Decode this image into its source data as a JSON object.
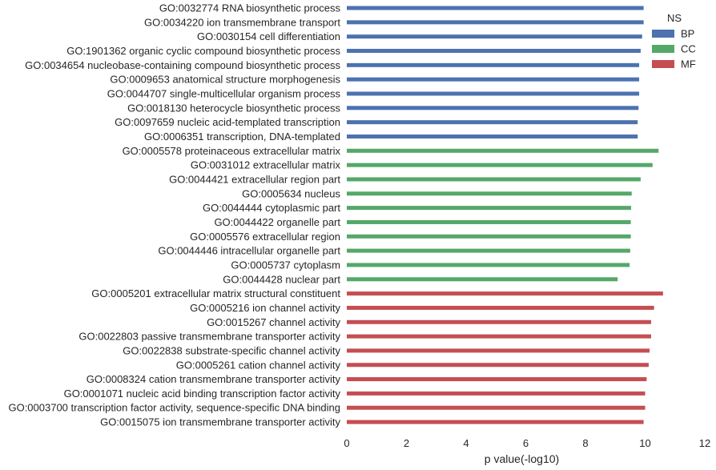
{
  "chart_data": {
    "type": "bar",
    "orientation": "horizontal",
    "xlabel": "p value(-log10)",
    "ylabel": "",
    "xlim": [
      0,
      12
    ],
    "xticks": [
      0,
      2,
      4,
      6,
      8,
      10,
      12
    ],
    "grid": false,
    "legend": {
      "title": "NS",
      "placement": "top-right",
      "entries": [
        {
          "name": "BP",
          "color": "#4c72b0"
        },
        {
          "name": "CC",
          "color": "#55a868"
        },
        {
          "name": "MF",
          "color": "#c44e52"
        }
      ]
    },
    "bars": [
      {
        "label": "GO:0032774 RNA biosynthetic process",
        "value": 9.95,
        "ns": "BP"
      },
      {
        "label": "GO:0034220 ion transmembrane transport",
        "value": 9.95,
        "ns": "BP"
      },
      {
        "label": "GO:0030154 cell differentiation",
        "value": 9.9,
        "ns": "BP"
      },
      {
        "label": "GO:1901362 organic cyclic compound biosynthetic process",
        "value": 9.85,
        "ns": "BP"
      },
      {
        "label": "GO:0034654 nucleobase-containing compound biosynthetic process",
        "value": 9.8,
        "ns": "BP"
      },
      {
        "label": "GO:0009653 anatomical structure morphogenesis",
        "value": 9.8,
        "ns": "BP"
      },
      {
        "label": "GO:0044707 single-multicellular organism process",
        "value": 9.8,
        "ns": "BP"
      },
      {
        "label": "GO:0018130 heterocycle biosynthetic process",
        "value": 9.78,
        "ns": "BP"
      },
      {
        "label": "GO:0097659 nucleic acid-templated transcription",
        "value": 9.75,
        "ns": "BP"
      },
      {
        "label": "GO:0006351 transcription, DNA-templated",
        "value": 9.75,
        "ns": "BP"
      },
      {
        "label": "GO:0005578 proteinaceous extracellular matrix",
        "value": 10.45,
        "ns": "CC"
      },
      {
        "label": "GO:0031012 extracellular matrix",
        "value": 10.25,
        "ns": "CC"
      },
      {
        "label": "GO:0044421 extracellular region part",
        "value": 9.85,
        "ns": "CC"
      },
      {
        "label": "GO:0005634 nucleus",
        "value": 9.55,
        "ns": "CC"
      },
      {
        "label": "GO:0044444 cytoplasmic part",
        "value": 9.53,
        "ns": "CC"
      },
      {
        "label": "GO:0044422 organelle part",
        "value": 9.52,
        "ns": "CC"
      },
      {
        "label": "GO:0005576 extracellular region",
        "value": 9.52,
        "ns": "CC"
      },
      {
        "label": "GO:0044446 intracellular organelle part",
        "value": 9.5,
        "ns": "CC"
      },
      {
        "label": "GO:0005737 cytoplasm",
        "value": 9.48,
        "ns": "CC"
      },
      {
        "label": "GO:0044428 nuclear part",
        "value": 9.08,
        "ns": "CC"
      },
      {
        "label": "GO:0005201 extracellular matrix structural constituent",
        "value": 10.6,
        "ns": "MF"
      },
      {
        "label": "GO:0005216 ion channel activity",
        "value": 10.3,
        "ns": "MF"
      },
      {
        "label": "GO:0015267 channel activity",
        "value": 10.2,
        "ns": "MF"
      },
      {
        "label": "GO:0022803 passive transmembrane transporter activity",
        "value": 10.2,
        "ns": "MF"
      },
      {
        "label": "GO:0022838 substrate-specific channel activity",
        "value": 10.15,
        "ns": "MF"
      },
      {
        "label": "GO:0005261 cation channel activity",
        "value": 10.12,
        "ns": "MF"
      },
      {
        "label": "GO:0008324 cation transmembrane transporter activity",
        "value": 10.05,
        "ns": "MF"
      },
      {
        "label": "GO:0001071 nucleic acid binding transcription factor activity",
        "value": 10.0,
        "ns": "MF"
      },
      {
        "label": "GO:0003700 transcription factor activity, sequence-specific DNA binding",
        "value": 10.0,
        "ns": "MF"
      },
      {
        "label": "GO:0015075 ion transmembrane transporter activity",
        "value": 9.95,
        "ns": "MF"
      }
    ]
  }
}
